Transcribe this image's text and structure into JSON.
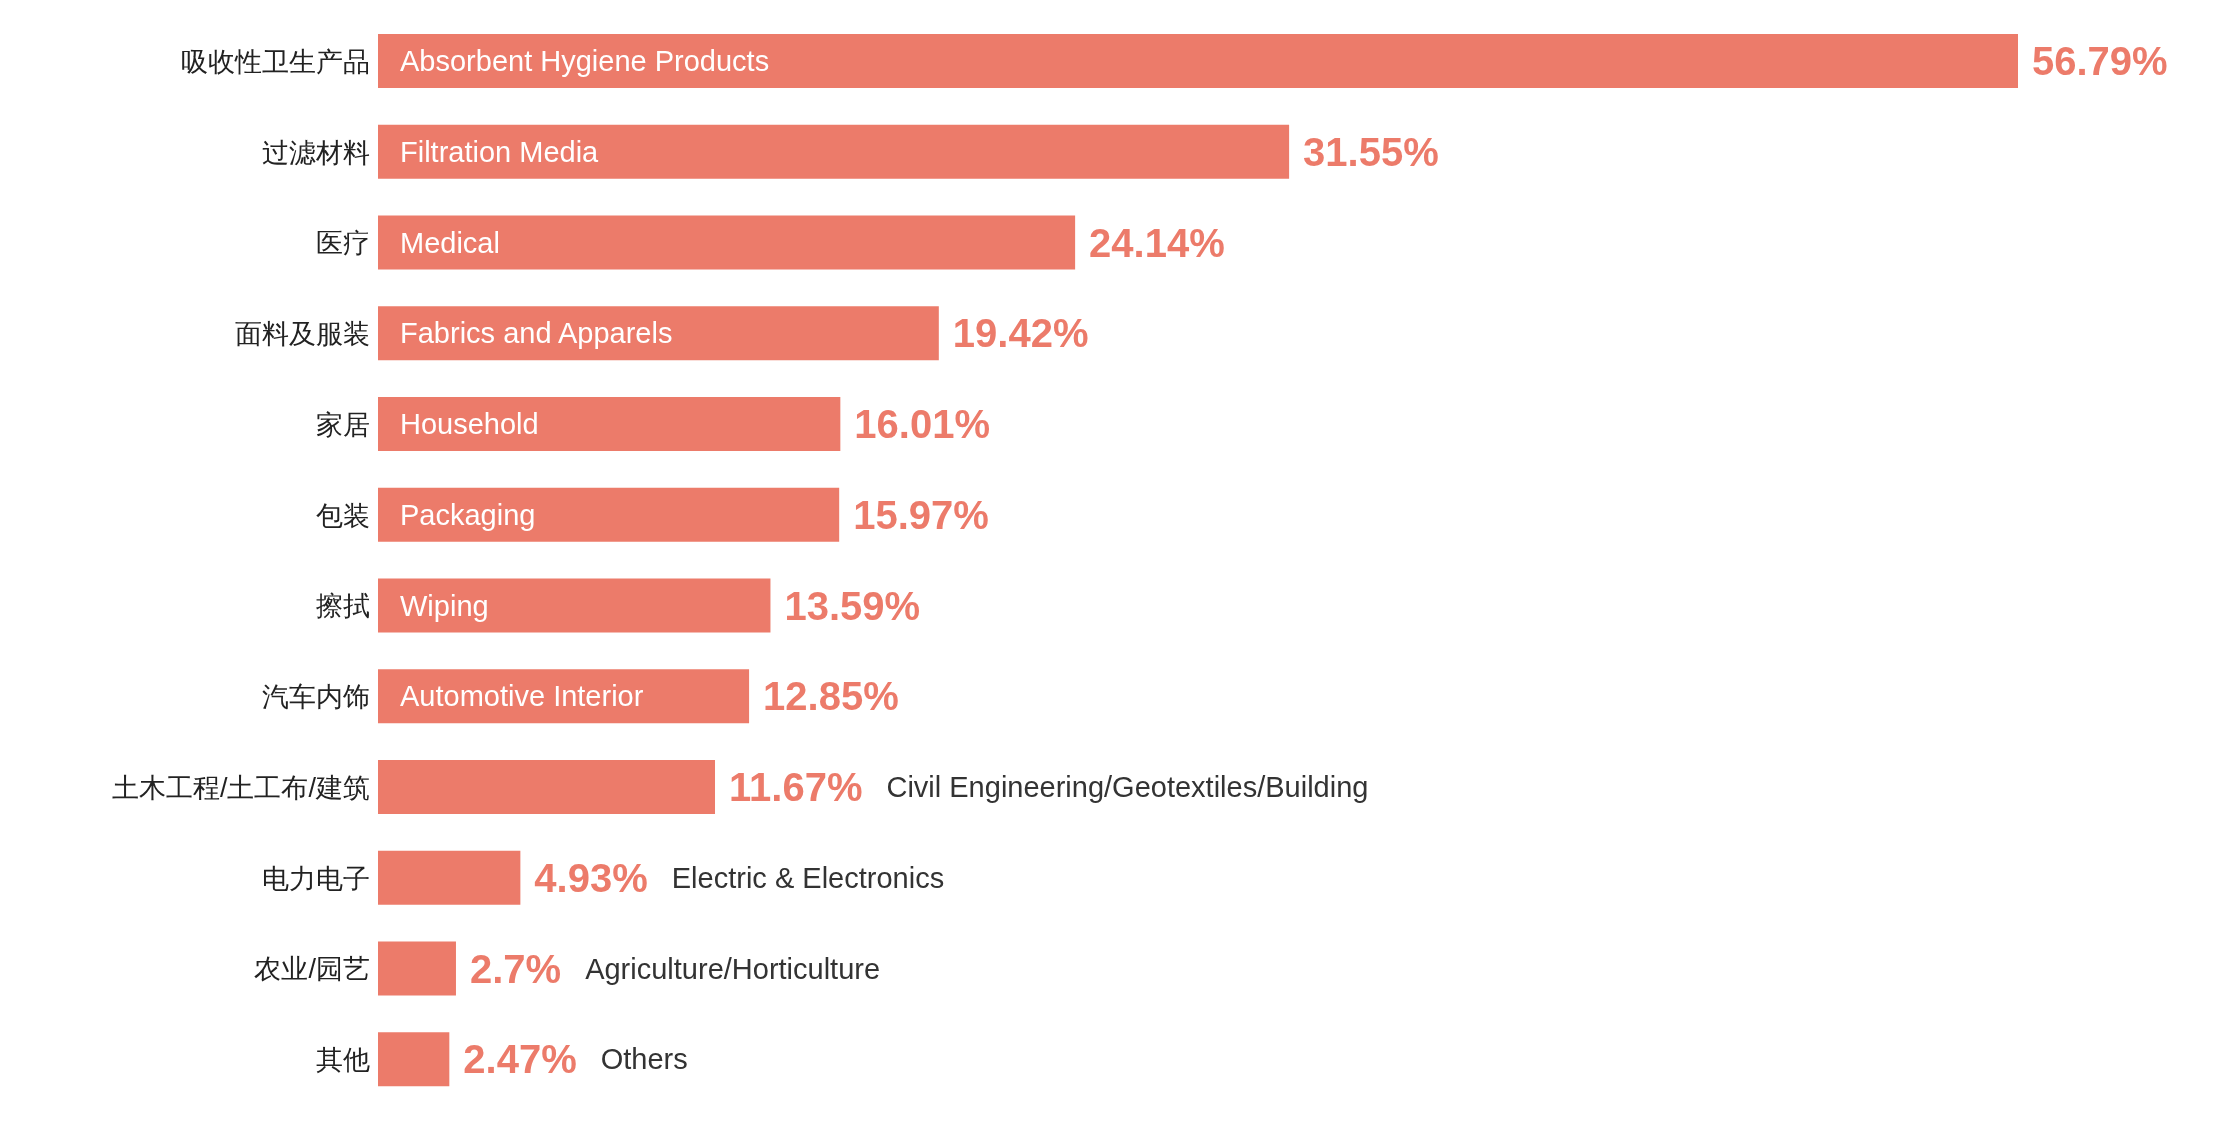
{
  "chart_data": {
    "type": "bar",
    "orientation": "horizontal",
    "color": "#ec7b6a",
    "categories": [
      "吸收性卫生产品",
      "过滤材料",
      "医疗",
      "面料及服装",
      "家居",
      "包装",
      "擦拭",
      "汽车内饰",
      "土木工程/土工布/建筑",
      "电力电子",
      "农业/园艺",
      "其他"
    ],
    "values": [
      56.79,
      31.55,
      24.14,
      19.42,
      16.01,
      15.97,
      13.59,
      12.85,
      11.67,
      4.93,
      2.7,
      2.47
    ],
    "value_labels": [
      "56.79%",
      "31.55%",
      "24.14%",
      "19.42%",
      "16.01%",
      "15.97%",
      "13.59%",
      "12.85%",
      "11.67%",
      "4.93%",
      "2.7%",
      "2.47%"
    ],
    "annotations": [
      "Absorbent Hygiene Products",
      "Filtration Media",
      "Medical",
      "Fabrics and Apparels",
      "Household",
      "Packaging",
      "Wiping",
      "Automotive Interior",
      "Civil Engineering/Geotextiles/Building",
      "Electric & Electronics",
      "Agriculture/Horticulture",
      "Others"
    ],
    "grid": false,
    "legend": false
  }
}
